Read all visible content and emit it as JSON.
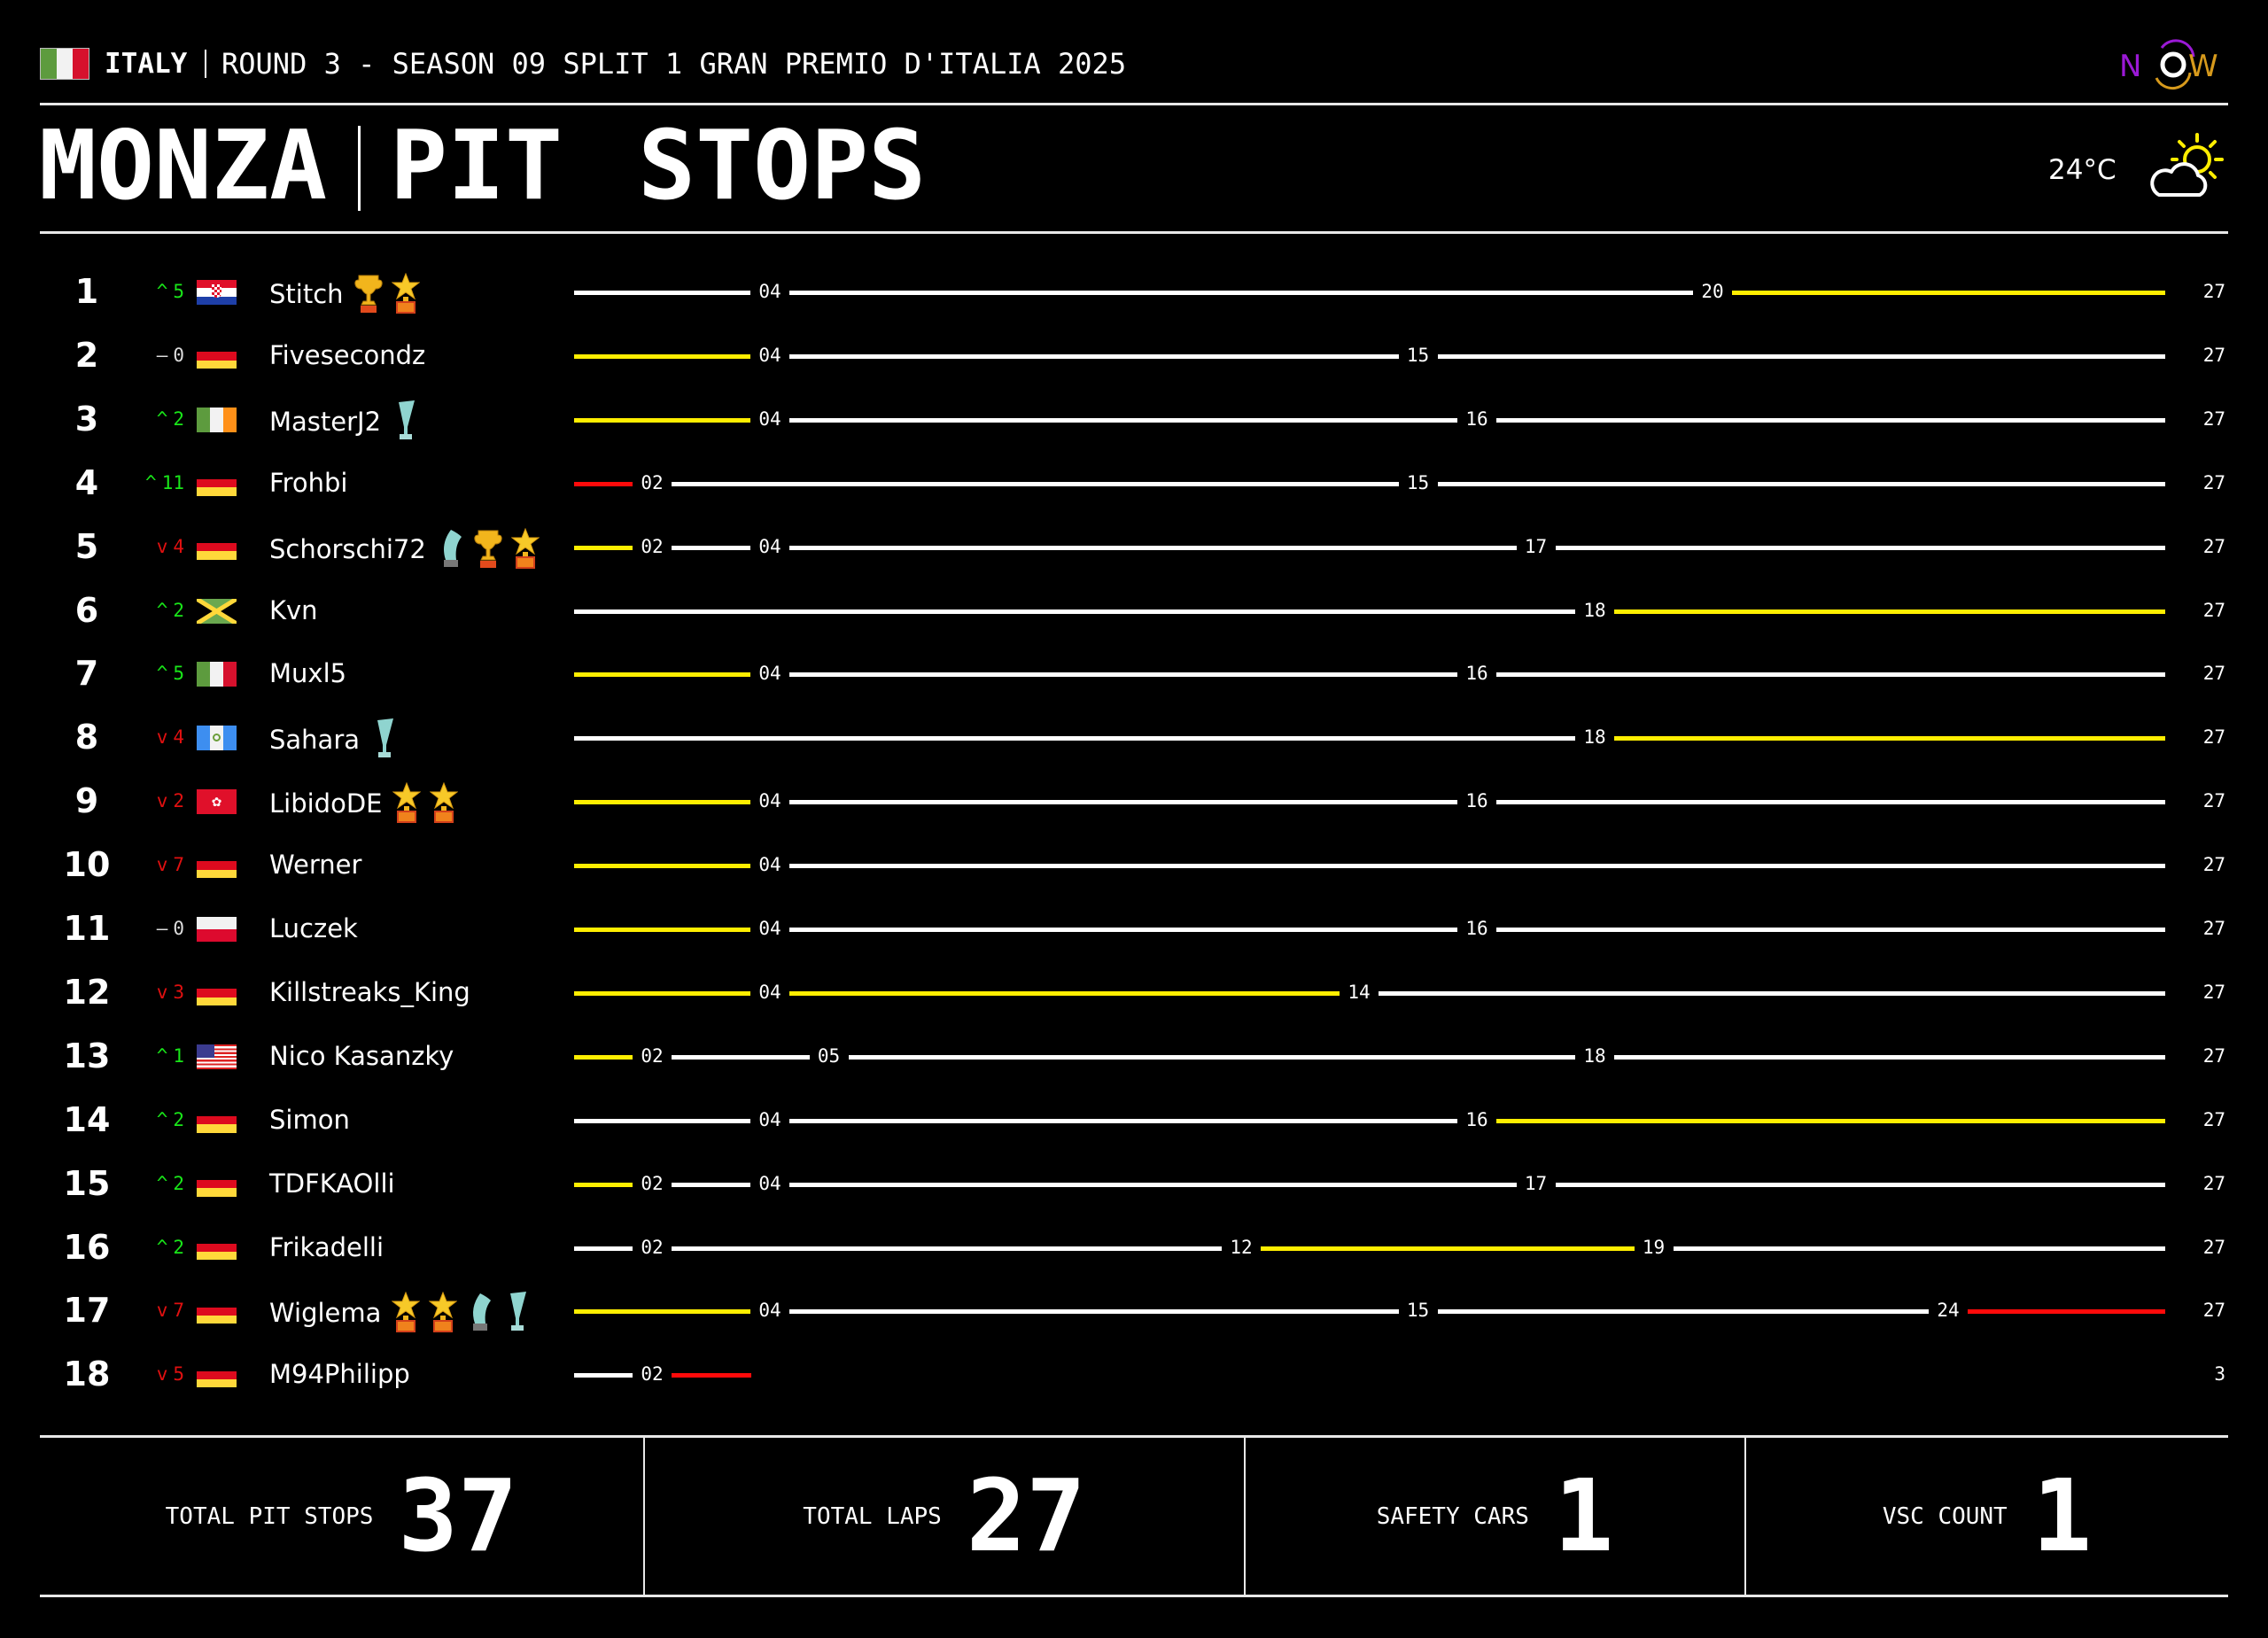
{
  "header": {
    "country": "ITALY",
    "country_flag": [
      "#5d9b3e",
      "#f2f2f2",
      "#d6112d"
    ],
    "round_title": "ROUND 3 - SEASON 09 SPLIT 1 GRAN PREMIO D'ITALIA 2025",
    "track": "MONZA",
    "page_title": "PIT STOPS",
    "temperature": "24°C",
    "weather_icon": "partly-cloudy-icon",
    "logo": {
      "text": "NOW",
      "colors": [
        "#9b19d6",
        "#ffffff",
        "#d79a1c"
      ]
    }
  },
  "compound_colors": {
    "W": "#ffffff",
    "Y": "#ffee00",
    "R": "#ff0a0a"
  },
  "change_colors": {
    "up": "#19e619",
    "down": "#e01010",
    "none": "#dddddd"
  },
  "drivers": [
    {
      "pos": "1",
      "change": {
        "dir": "up",
        "value": "5"
      },
      "flag": "HR",
      "name": "Stitch",
      "awards": [
        "trophy",
        "star"
      ],
      "stops": [
        "04",
        "20"
      ],
      "stints": [
        "W",
        "W",
        "Y"
      ],
      "laps": "27"
    },
    {
      "pos": "2",
      "change": {
        "dir": "none",
        "value": "0"
      },
      "flag": "DE",
      "name": "Fivesecondz",
      "awards": [],
      "stops": [
        "04",
        "15"
      ],
      "stints": [
        "Y",
        "W",
        "W"
      ],
      "laps": "27"
    },
    {
      "pos": "3",
      "change": {
        "dir": "up",
        "value": "2"
      },
      "flag": "IE",
      "name": "MasterJ2",
      "awards": [
        "glass-flute"
      ],
      "stops": [
        "04",
        "16"
      ],
      "stints": [
        "Y",
        "W",
        "W"
      ],
      "laps": "27"
    },
    {
      "pos": "4",
      "change": {
        "dir": "up",
        "value": "11"
      },
      "flag": "DE",
      "name": "Frohbi",
      "awards": [],
      "stops": [
        "02",
        "15"
      ],
      "stints": [
        "R",
        "W",
        "W"
      ],
      "laps": "27"
    },
    {
      "pos": "5",
      "change": {
        "dir": "down",
        "value": "4"
      },
      "flag": "DE",
      "name": "Schorschi72",
      "awards": [
        "glass-curve",
        "trophy",
        "star"
      ],
      "stops": [
        "02",
        "04",
        "17"
      ],
      "stints": [
        "Y",
        "W",
        "W",
        "W"
      ],
      "laps": "27"
    },
    {
      "pos": "6",
      "change": {
        "dir": "up",
        "value": "2"
      },
      "flag": "JM",
      "name": "Kvn",
      "awards": [],
      "stops": [
        "18"
      ],
      "stints": [
        "W",
        "Y"
      ],
      "laps": "27"
    },
    {
      "pos": "7",
      "change": {
        "dir": "up",
        "value": "5"
      },
      "flag": "IT",
      "name": "Muxl5",
      "awards": [],
      "stops": [
        "04",
        "16"
      ],
      "stints": [
        "Y",
        "W",
        "W"
      ],
      "laps": "27"
    },
    {
      "pos": "8",
      "change": {
        "dir": "down",
        "value": "4"
      },
      "flag": "GT",
      "name": "Sahara",
      "awards": [
        "glass-flute"
      ],
      "stops": [
        "18"
      ],
      "stints": [
        "W",
        "Y"
      ],
      "laps": "27"
    },
    {
      "pos": "9",
      "change": {
        "dir": "down",
        "value": "2"
      },
      "flag": "HK",
      "name": "LibidoDE",
      "awards": [
        "star",
        "star"
      ],
      "stops": [
        "04",
        "16"
      ],
      "stints": [
        "Y",
        "W",
        "W"
      ],
      "laps": "27"
    },
    {
      "pos": "10",
      "change": {
        "dir": "down",
        "value": "7"
      },
      "flag": "DE",
      "name": "Werner",
      "awards": [],
      "stops": [
        "04"
      ],
      "stints": [
        "Y",
        "W"
      ],
      "laps": "27"
    },
    {
      "pos": "11",
      "change": {
        "dir": "none",
        "value": "0"
      },
      "flag": "PL",
      "name": "Luczek",
      "awards": [],
      "stops": [
        "04",
        "16"
      ],
      "stints": [
        "Y",
        "W",
        "W"
      ],
      "laps": "27"
    },
    {
      "pos": "12",
      "change": {
        "dir": "down",
        "value": "3"
      },
      "flag": "DE",
      "name": "Killstreaks_King",
      "awards": [],
      "stops": [
        "04",
        "14"
      ],
      "stints": [
        "Y",
        "Y",
        "W"
      ],
      "laps": "27"
    },
    {
      "pos": "13",
      "change": {
        "dir": "up",
        "value": "1"
      },
      "flag": "US",
      "name": "Nico Kasanzky",
      "awards": [],
      "stops": [
        "02",
        "05",
        "18"
      ],
      "stints": [
        "Y",
        "W",
        "W",
        "W"
      ],
      "laps": "27"
    },
    {
      "pos": "14",
      "change": {
        "dir": "up",
        "value": "2"
      },
      "flag": "DE",
      "name": "Simon",
      "awards": [],
      "stops": [
        "04",
        "16"
      ],
      "stints": [
        "W",
        "W",
        "Y"
      ],
      "laps": "27"
    },
    {
      "pos": "15",
      "change": {
        "dir": "up",
        "value": "2"
      },
      "flag": "DE",
      "name": "TDFKAOlli",
      "awards": [],
      "stops": [
        "02",
        "04",
        "17"
      ],
      "stints": [
        "Y",
        "W",
        "W",
        "W"
      ],
      "laps": "27"
    },
    {
      "pos": "16",
      "change": {
        "dir": "up",
        "value": "2"
      },
      "flag": "DE",
      "name": "Frikadelli",
      "awards": [],
      "stops": [
        "02",
        "12",
        "19"
      ],
      "stints": [
        "W",
        "W",
        "Y",
        "W"
      ],
      "laps": "27"
    },
    {
      "pos": "17",
      "change": {
        "dir": "down",
        "value": "7"
      },
      "flag": "DE",
      "name": "Wiglema",
      "awards": [
        "star",
        "star",
        "glass-curve",
        "glass-flute"
      ],
      "stops": [
        "04",
        "15",
        "24"
      ],
      "stints": [
        "Y",
        "W",
        "W",
        "R"
      ],
      "laps": "27"
    },
    {
      "pos": "18",
      "change": {
        "dir": "down",
        "value": "5"
      },
      "flag": "DE",
      "name": "M94Philipp",
      "awards": [],
      "stops": [
        "02"
      ],
      "stints": [
        "W",
        "R"
      ],
      "laps": "3"
    }
  ],
  "footer": {
    "total_pit_stops_label": "TOTAL PIT STOPS",
    "total_pit_stops": "37",
    "total_laps_label": "TOTAL LAPS",
    "total_laps": "27",
    "safety_cars_label": "SAFETY CARS",
    "safety_cars": "1",
    "vsc_count_label": "VSC COUNT",
    "vsc_count": "1"
  }
}
